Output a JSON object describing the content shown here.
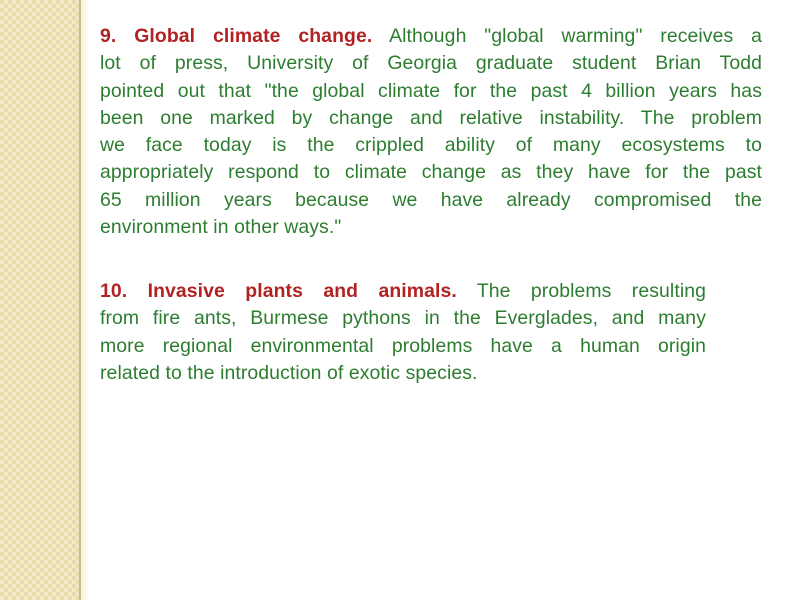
{
  "slide": {
    "background_color": "#ffffff",
    "sidebar_color": "#e9dcaa",
    "sidebar_check_color": "#f2e9cb",
    "sidebar_edge_color": "#cdbd8b",
    "heading_color": "#b22222",
    "body_color": "#2d7d30",
    "paragraphs": [
      {
        "heading": "9. Global climate change.",
        "lines": [
          "Although \"global warming\" receives a",
          "lot of press, University of Georgia graduate student Brian Todd",
          "pointed out that \"the global climate for the past 4 billion years has",
          "been one marked by change and relative instability. The problem",
          "we face today is the crippled ability of many ecosystems to",
          "appropriately respond to climate change as they have for the past",
          "65 million years because we have already compromised the",
          "environment in other ways.\""
        ]
      },
      {
        "heading": "10. Invasive plants and animals.",
        "lines": [
          "The problems resulting",
          "from fire ants, Burmese pythons in the Everglades, and many",
          "more regional environmental problems have a human origin",
          "related to the introduction of exotic species."
        ]
      }
    ]
  }
}
